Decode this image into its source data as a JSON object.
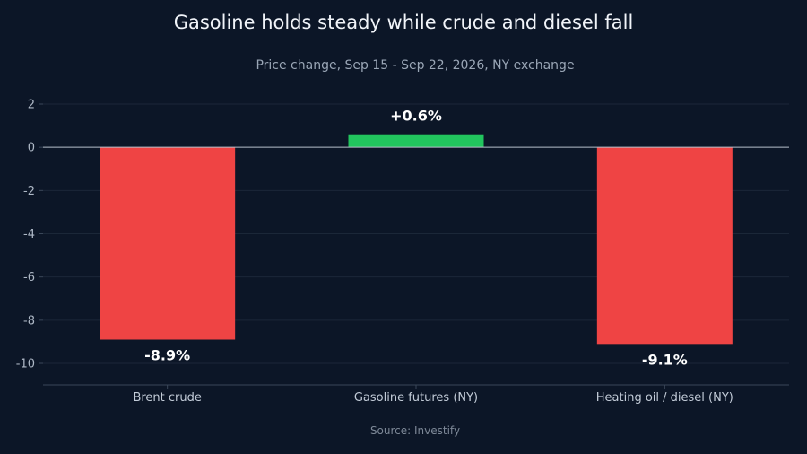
{
  "colors": {
    "background": "#0c1627",
    "negative": "#ef4444",
    "positive": "#22c55e",
    "grid": "#1b2738",
    "zero_line": "#b7c0cc",
    "axis_line": "#3a4759"
  },
  "chart_data": {
    "type": "bar",
    "title": "Gasoline holds steady while crude and diesel fall",
    "subtitle": "Price change, Sep 15 - Sep 22, 2026, NY exchange",
    "categories": [
      "Brent crude",
      "Gasoline futures (NY)",
      "Heating oil / diesel (NY)"
    ],
    "values": [
      -8.9,
      0.6,
      -9.1
    ],
    "data_labels": [
      "-8.9%",
      "+0.6%",
      "-9.1%"
    ],
    "xlabel": "",
    "ylabel": "",
    "ylim": [
      -11,
      2
    ],
    "yticks": [
      2,
      0,
      -2,
      -4,
      -6,
      -8,
      -10
    ],
    "ytick_labels": [
      "2",
      "0",
      "-2",
      "-4",
      "-6",
      "-8",
      "-10"
    ],
    "grid": true,
    "legend": "none",
    "source": "Source: Investify"
  }
}
